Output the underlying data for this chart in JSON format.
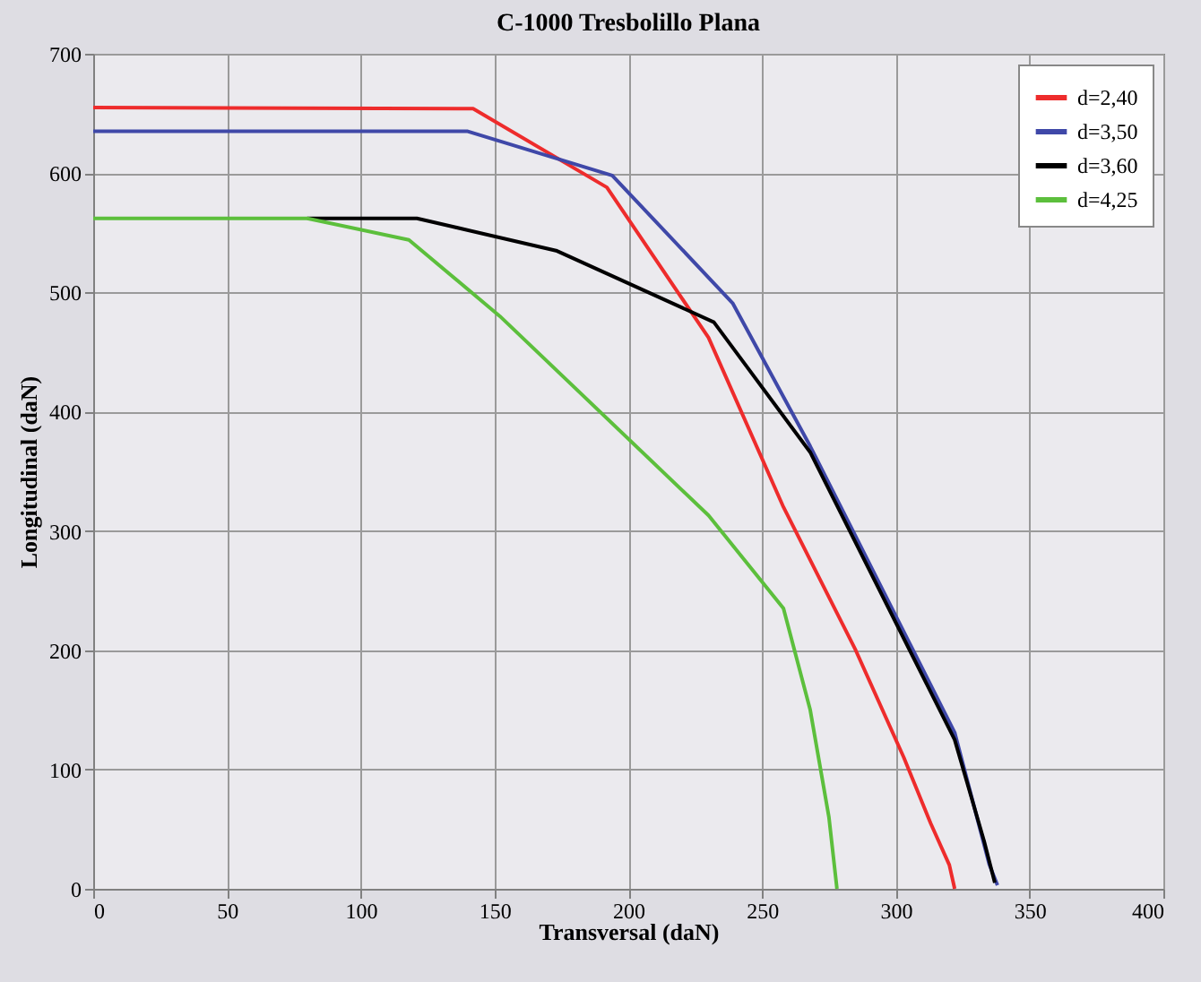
{
  "chart_data": {
    "type": "line",
    "title": "C-1000 Tresbolillo Plana",
    "xlabel": "Transversal (daN)",
    "ylabel": "Longitudinal (daN)",
    "xlim": [
      0,
      400
    ],
    "xticks": [
      0,
      50,
      100,
      150,
      200,
      250,
      300,
      350,
      400
    ],
    "ylim": [
      0,
      700
    ],
    "yticks": [
      0,
      100,
      200,
      300,
      400,
      500,
      600,
      700
    ],
    "grid": true,
    "legend": "top right",
    "marker": "none",
    "line_style": "solid",
    "series": [
      {
        "name": "d=2,40",
        "color": "#ee2c2c",
        "x": [
          0,
          142,
          192,
          230,
          258,
          285,
          303,
          313,
          320,
          322
        ],
        "values": [
          655,
          654,
          588,
          462,
          320,
          200,
          110,
          55,
          20,
          0
        ]
      },
      {
        "name": "d=3,50",
        "color": "#3f48a8",
        "x": [
          0,
          140,
          194,
          239,
          268,
          322,
          335,
          338
        ],
        "values": [
          635,
          635,
          598,
          491,
          371,
          131,
          20,
          3
        ]
      },
      {
        "name": "d=3,60",
        "color": "#000000",
        "x": [
          80,
          121,
          173,
          232,
          268,
          322,
          333,
          337
        ],
        "values": [
          562,
          562,
          535,
          475,
          366,
          125,
          40,
          5
        ]
      },
      {
        "name": "d=4,25",
        "color": "#5cbf3c",
        "x": [
          0,
          80,
          118,
          152,
          230,
          258,
          268,
          275,
          277,
          278
        ],
        "values": [
          562,
          562,
          544,
          480,
          313,
          235,
          150,
          60,
          20,
          0
        ]
      }
    ]
  }
}
